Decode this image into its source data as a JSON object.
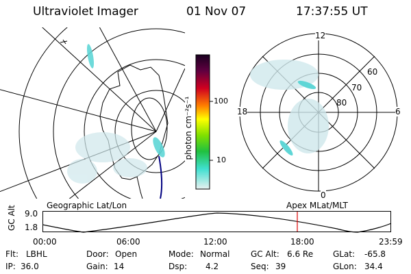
{
  "header": {
    "instrument": "Ultraviolet Imager",
    "date": "01 Nov 07",
    "time": "17:37:55 UT"
  },
  "colorbar": {
    "unit_label": "photon cm⁻²s⁻¹",
    "ticks": [
      "100",
      "10"
    ]
  },
  "polar_plot": {
    "mlt_labels": {
      "top": "12",
      "left": "18",
      "right": "6",
      "bottom": "0"
    },
    "lat_labels": [
      "60",
      "70",
      "80"
    ]
  },
  "altitude_panel": {
    "ylabel": "GC Alt",
    "yticks": [
      "9.0",
      "1.8"
    ],
    "left_caption": "Geographic Lat/Lon",
    "right_caption": "Apex MLat/MLT",
    "xticks": [
      "00:00",
      "06:00",
      "12:00",
      "18:00",
      "23:59"
    ]
  },
  "status": {
    "row1": {
      "flt_label": "Flt:",
      "flt_value": "LBHL",
      "door_label": "Door:",
      "door_value": "Open",
      "mode_label": "Mode:",
      "mode_value": "Normal",
      "gcalt_label": "GC Alt:",
      "gcalt_value": "6.6 Re",
      "glat_label": "GLat:",
      "glat_value": "-65.8"
    },
    "row2": {
      "ip_label": "IP:",
      "ip_value": "36.0",
      "gain_label": "Gain:",
      "gain_value": "14",
      "dsp_label": "Dsp:",
      "dsp_value": "4.2",
      "seq_label": "Seq:",
      "seq_value": "39",
      "glon_label": "GLon:",
      "glon_value": "34.4"
    }
  },
  "colors": {
    "accent_marker": "#dd0000",
    "orbit_line": "#000080",
    "aurora": "#5fd6d6"
  }
}
